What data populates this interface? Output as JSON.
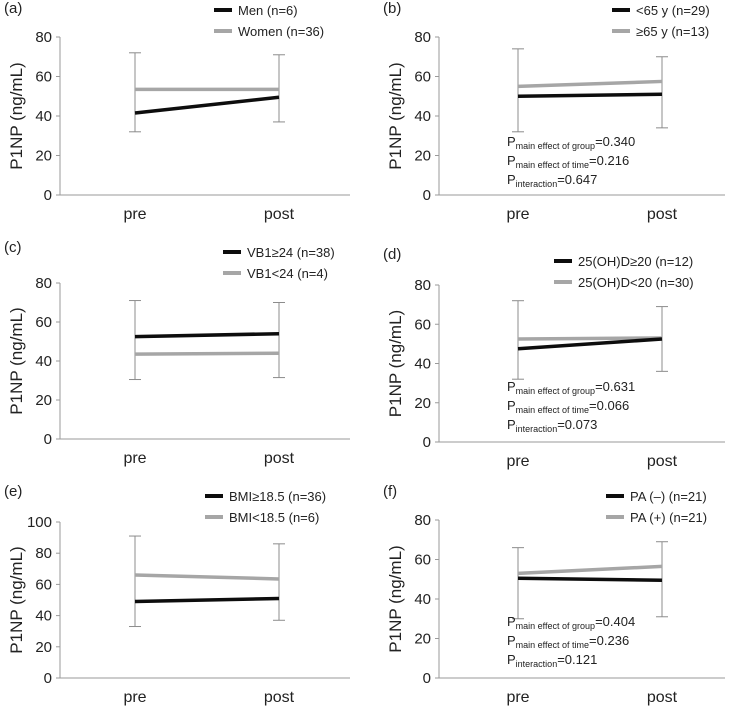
{
  "colors": {
    "black_series": "#0d0d0d",
    "gray_series": "#a6a6a6",
    "axis": "#9a9a9a",
    "errorbar": "#8c8c8c"
  },
  "chart_data": [
    {
      "panel": "(a)",
      "type": "line",
      "categories": [
        "pre",
        "post"
      ],
      "ylabel": "P1NP (ng/mL)",
      "ylim": [
        0,
        80
      ],
      "yticks": [
        0,
        20,
        40,
        60,
        80
      ],
      "series": [
        {
          "name": "Men (n=6)",
          "values": [
            41.5,
            49.5
          ],
          "err_high": [
            72,
            71
          ],
          "err_low": [
            32,
            37
          ]
        },
        {
          "name": "Women (n=36)",
          "values": [
            53.5,
            53.5
          ],
          "err_high": [
            72,
            71
          ],
          "err_low": [
            32,
            37
          ]
        }
      ],
      "stats": null
    },
    {
      "panel": "(b)",
      "type": "line",
      "categories": [
        "pre",
        "post"
      ],
      "ylabel": "P1NP (ng/mL)",
      "ylim": [
        0,
        80
      ],
      "yticks": [
        0,
        20,
        40,
        60,
        80
      ],
      "series": [
        {
          "name": "<65 y (n=29)",
          "values": [
            50,
            51
          ],
          "err_high": [
            74,
            70
          ],
          "err_low": [
            32,
            34
          ]
        },
        {
          "name": "≥65 y (n=13)",
          "values": [
            55,
            57.5
          ],
          "err_high": [
            74,
            70
          ],
          "err_low": [
            32,
            34
          ]
        }
      ],
      "stats": [
        {
          "p": "P",
          "sub": "main effect of group",
          "value": "=0.340"
        },
        {
          "p": "P",
          "sub": "main effect of time",
          "value": "=0.216"
        },
        {
          "p": "P",
          "sub": "interaction",
          "value": "=0.647"
        }
      ]
    },
    {
      "panel": "(c)",
      "type": "line",
      "categories": [
        "pre",
        "post"
      ],
      "ylabel": "P1NP (ng/mL)",
      "ylim": [
        0,
        80
      ],
      "yticks": [
        0,
        20,
        40,
        60,
        80
      ],
      "series": [
        {
          "name": "VB1≥24 (n=38)",
          "values": [
            52.5,
            54
          ],
          "err_high": [
            71,
            70
          ],
          "err_low": [
            30.5,
            31.5
          ]
        },
        {
          "name": "VB1<24 (n=4)",
          "values": [
            43.5,
            44
          ],
          "err_high": [
            71,
            70
          ],
          "err_low": [
            30.5,
            31.5
          ]
        }
      ],
      "stats": null
    },
    {
      "panel": "(d)",
      "type": "line",
      "categories": [
        "pre",
        "post"
      ],
      "ylabel": "P1NP (ng/mL)",
      "ylim": [
        0,
        80
      ],
      "yticks": [
        0,
        20,
        40,
        60,
        80
      ],
      "series": [
        {
          "name": "25(OH)D≥20 (n=12)",
          "values": [
            47.5,
            52.5
          ],
          "err_high": [
            72,
            69
          ],
          "err_low": [
            32,
            36
          ]
        },
        {
          "name": "25(OH)D<20 (n=30)",
          "values": [
            52.5,
            53
          ],
          "err_high": [
            72,
            69
          ],
          "err_low": [
            32,
            36
          ]
        }
      ],
      "stats": [
        {
          "p": "P",
          "sub": "main effect of group",
          "value": "=0.631"
        },
        {
          "p": "P",
          "sub": "main effect of time",
          "value": "=0.066"
        },
        {
          "p": "P",
          "sub": "interaction",
          "value": "=0.073"
        }
      ]
    },
    {
      "panel": "(e)",
      "type": "line",
      "categories": [
        "pre",
        "post"
      ],
      "ylabel": "P1NP (ng/mL)",
      "ylim": [
        0,
        100
      ],
      "yticks": [
        0,
        20,
        40,
        60,
        80,
        100
      ],
      "series": [
        {
          "name": "BMI≥18.5 (n=36)",
          "values": [
            49,
            51
          ],
          "err_high": [
            91,
            86
          ],
          "err_low": [
            33,
            37
          ]
        },
        {
          "name": "BMI<18.5 (n=6)",
          "values": [
            66,
            63.5
          ],
          "err_high": [
            91,
            86
          ],
          "err_low": [
            33,
            37
          ]
        }
      ],
      "stats": null
    },
    {
      "panel": "(f)",
      "type": "line",
      "categories": [
        "pre",
        "post"
      ],
      "ylabel": "P1NP (ng/mL)",
      "ylim": [
        0,
        80
      ],
      "yticks": [
        0,
        20,
        40,
        60,
        80
      ],
      "series": [
        {
          "name": "PA (–) (n=21)",
          "values": [
            50.5,
            49.5
          ],
          "err_high": [
            66,
            69
          ],
          "err_low": [
            30,
            31
          ]
        },
        {
          "name": "PA (+) (n=21)",
          "values": [
            53,
            56.5
          ],
          "err_high": [
            66,
            69
          ],
          "err_low": [
            30,
            31
          ]
        }
      ],
      "stats": [
        {
          "p": "P",
          "sub": "main effect of group",
          "value": "=0.404"
        },
        {
          "p": "P",
          "sub": "main effect of time",
          "value": "=0.236"
        },
        {
          "p": "P",
          "sub": "interaction",
          "value": "=0.121"
        }
      ]
    }
  ]
}
